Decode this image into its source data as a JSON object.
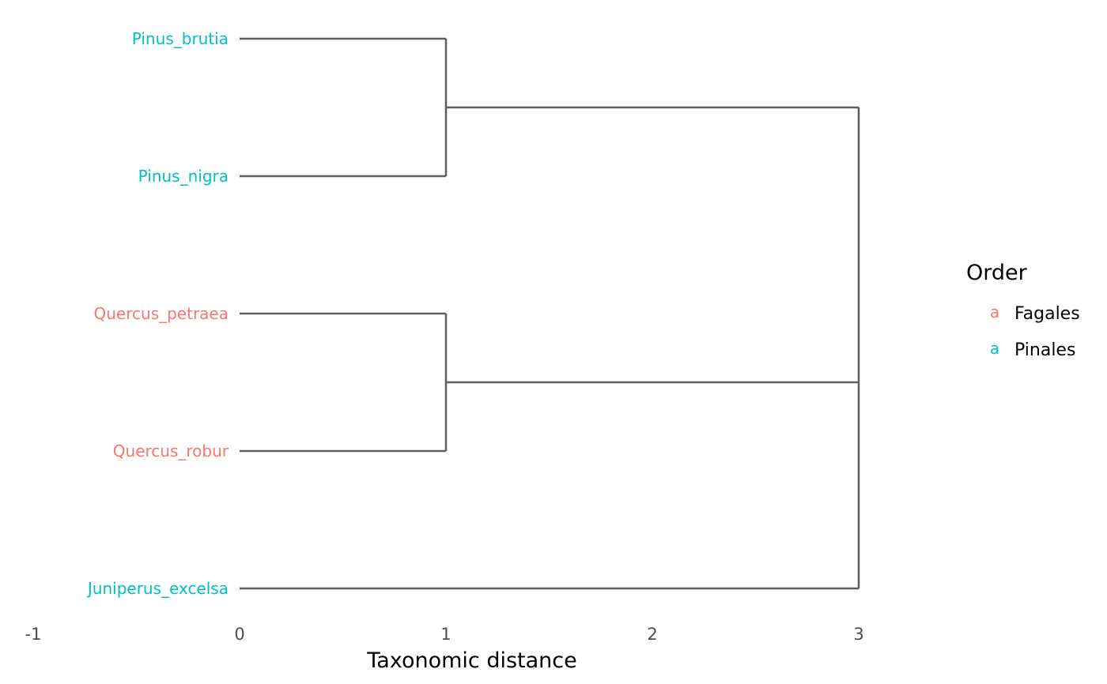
{
  "chart_data": {
    "type": "dendrogram",
    "xlabel": "Taxonomic distance",
    "x_ticks": [
      "-1",
      "0",
      "1",
      "2",
      "3"
    ],
    "x_tick_values": [
      -1,
      0,
      1,
      2,
      3
    ],
    "xlim": [
      -1,
      3
    ],
    "grid": false,
    "leaves": [
      {
        "name": "Pinus_brutia",
        "order": "Pinales"
      },
      {
        "name": "Pinus_nigra",
        "order": "Pinales"
      },
      {
        "name": "Quercus_petraea",
        "order": "Fagales"
      },
      {
        "name": "Quercus_robur",
        "order": "Fagales"
      },
      {
        "name": "Juniperus_excelsa",
        "order": "Pinales"
      }
    ],
    "merges": [
      {
        "children": [
          "Pinus_brutia",
          "Pinus_nigra"
        ],
        "height": 1
      },
      {
        "children": [
          "Quercus_petraea",
          "Quercus_robur"
        ],
        "height": 1
      },
      {
        "children": [
          "Pinus_brutia+Pinus_nigra",
          "Quercus_petraea+Quercus_robur",
          "Juniperus_excelsa"
        ],
        "height": 3
      }
    ],
    "legend": {
      "title": "Order",
      "position": "right",
      "key_glyph": "a",
      "items": [
        {
          "label": "Fagales",
          "color": "#f8766d"
        },
        {
          "label": "Pinales",
          "color": "#00bfc4"
        }
      ]
    }
  }
}
